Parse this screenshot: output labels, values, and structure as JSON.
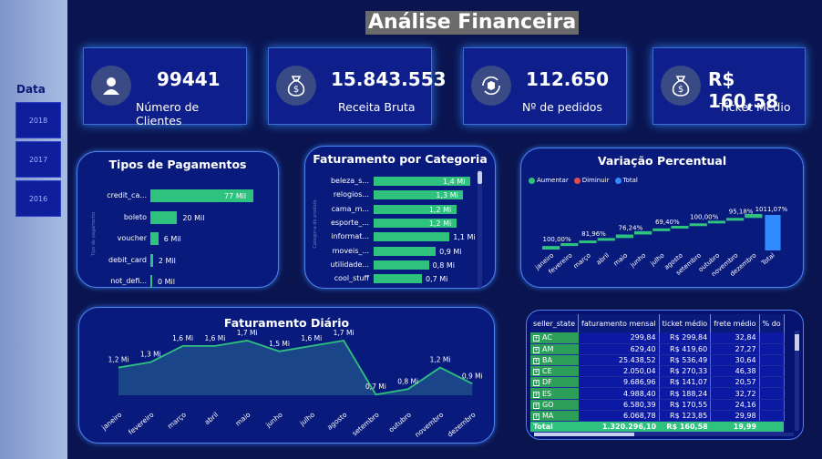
{
  "sidebar": {
    "label": "Data",
    "years": [
      "2018",
      "2017",
      "2016"
    ]
  },
  "title": "Análise Financeira",
  "kpis": [
    {
      "value": "99441",
      "label": "Número de Clientes",
      "icon": "user-icon"
    },
    {
      "value": "15.843.553",
      "label": "Receita Bruta",
      "icon": "money-bag-icon"
    },
    {
      "value": "112.650",
      "label": "Nº de pedidos",
      "icon": "order-box-icon"
    },
    {
      "value": "R$ 160,58",
      "label": "Ticket Médio",
      "icon": "money-bag-icon"
    }
  ],
  "colors": {
    "bar": "#2ec27e",
    "accent": "#4f83f0",
    "increase": "#2ec27e",
    "decrease": "#e24b4b",
    "total": "#2f8bff"
  },
  "payments": {
    "title": "Tipos de Pagamentos",
    "axis_label": "Tipo de pagamento",
    "rows": [
      {
        "cat": "credit_ca...",
        "value": 77,
        "label": "77 Mil"
      },
      {
        "cat": "boleto",
        "value": 20,
        "label": "20 Mil"
      },
      {
        "cat": "voucher",
        "value": 6,
        "label": "6 Mil"
      },
      {
        "cat": "debit_card",
        "value": 2,
        "label": "2 Mil"
      },
      {
        "cat": "not_defi...",
        "value": 0,
        "label": "0 Mil"
      }
    ]
  },
  "category": {
    "title": "Faturamento por Categoria",
    "axis_label": "Categoria do produto",
    "rows": [
      {
        "cat": "beleza_s...",
        "value": 1.4,
        "label": "1,4 Mi"
      },
      {
        "cat": "relogios...",
        "value": 1.3,
        "label": "1,3 Mi"
      },
      {
        "cat": "cama_m...",
        "value": 1.2,
        "label": "1,2 Mi"
      },
      {
        "cat": "esporte_...",
        "value": 1.2,
        "label": "1,2 Mi"
      },
      {
        "cat": "informat...",
        "value": 1.1,
        "label": "1,1 Mi"
      },
      {
        "cat": "moveis_...",
        "value": 0.9,
        "label": "0,9 Mi"
      },
      {
        "cat": "utilidade...",
        "value": 0.8,
        "label": "0,8 Mi"
      },
      {
        "cat": "cool_stuff",
        "value": 0.7,
        "label": "0,7 Mi"
      }
    ]
  },
  "variation": {
    "title": "Variação Percentual",
    "legend": [
      "Aumentar",
      "Diminuir",
      "Total"
    ],
    "months": [
      "janeiro",
      "fevereiro",
      "março",
      "abril",
      "maio",
      "junho",
      "julho",
      "agosto",
      "setembro",
      "outubro",
      "novembro",
      "dezembro",
      "Total"
    ],
    "cumulative": [
      100,
      181.96,
      258.2,
      327.6,
      427.6,
      522.78,
      601.5,
      675.0,
      745.0,
      820.0,
      900.0,
      1011.07
    ],
    "labels": [
      "100,00%",
      "81,96%",
      "76,24%",
      "69,40%",
      "100,00%",
      "95,18%",
      "1011,07%"
    ],
    "label_months": [
      0,
      2,
      4,
      6,
      8,
      10,
      12
    ]
  },
  "daily": {
    "title": "Faturamento Diário",
    "months": [
      "janeiro",
      "fevereiro",
      "março",
      "abril",
      "maio",
      "junho",
      "julho",
      "agosto",
      "setembro",
      "outubro",
      "novembro",
      "dezembro"
    ],
    "values": [
      1.2,
      1.3,
      1.6,
      1.6,
      1.7,
      1.5,
      1.6,
      1.7,
      0.7,
      0.8,
      1.2,
      0.9
    ],
    "labels": [
      "1,2 Mi",
      "1,3 Mi",
      "1,6 Mi",
      "1,6 Mi",
      "1,7 Mi",
      "1,5 Mi",
      "1,6 Mi",
      "1,7 Mi",
      "0,7 Mi",
      "0,8 Mi",
      "1,2 Mi",
      "0,9 Mi"
    ]
  },
  "table": {
    "headers": [
      "seller_state",
      "faturamento mensal",
      "ticket médio",
      "frete médio",
      "% do"
    ],
    "rows": [
      [
        "AC",
        "299,84",
        "R$ 299,84",
        "32,84"
      ],
      [
        "AM",
        "629,40",
        "R$ 419,60",
        "27,27"
      ],
      [
        "BA",
        "25.438,52",
        "R$ 536,49",
        "30,64"
      ],
      [
        "CE",
        "2.050,04",
        "R$ 270,33",
        "46,38"
      ],
      [
        "DF",
        "9.686,96",
        "R$ 141,07",
        "20,57"
      ],
      [
        "ES",
        "4.988,40",
        "R$ 188,24",
        "32,72"
      ],
      [
        "GO",
        "6.580,39",
        "R$ 170,55",
        "24,16"
      ],
      [
        "MA",
        "6.068,78",
        "R$ 123,85",
        "29,98"
      ]
    ],
    "total": [
      "Total",
      "1.320.296,10",
      "R$ 160,58",
      "19,99"
    ]
  }
}
